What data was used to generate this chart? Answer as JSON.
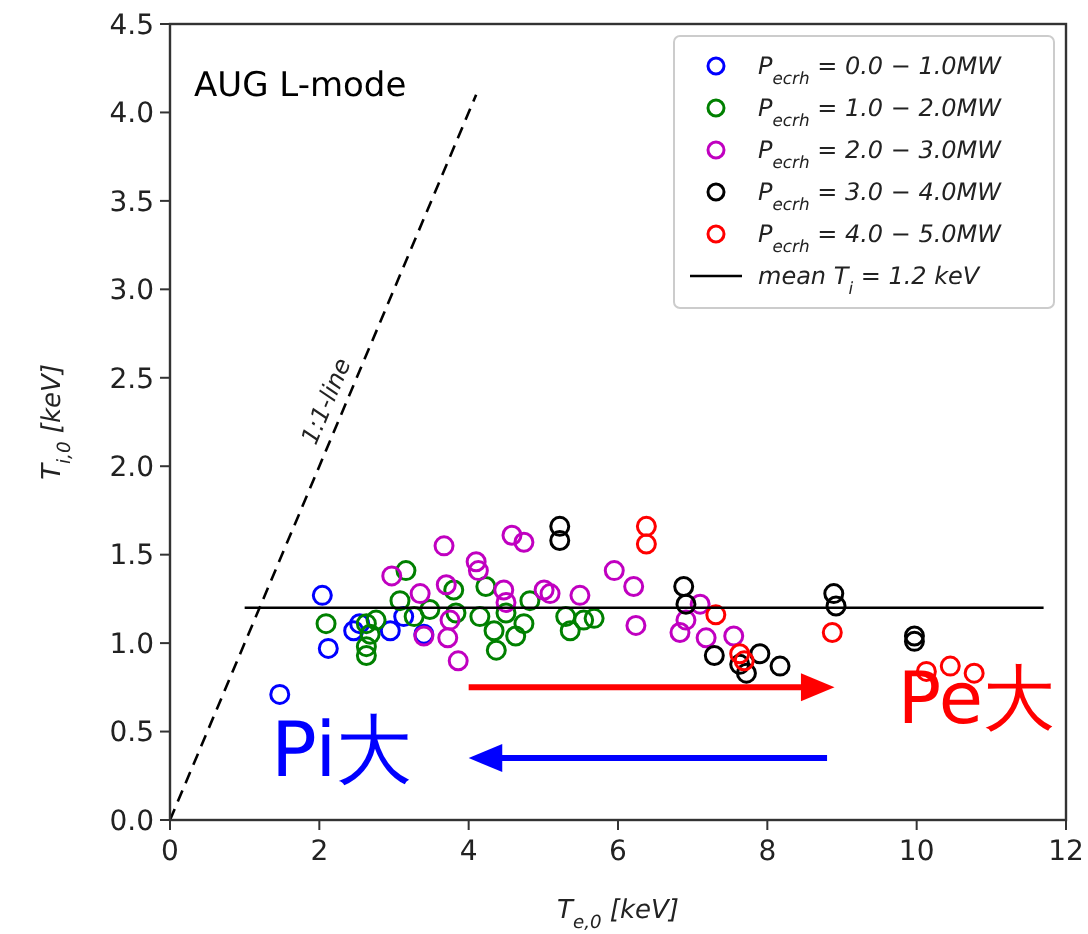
{
  "chart_data": {
    "type": "scatter",
    "xlabel": "T$_{e,0}$ [keV]",
    "ylabel": "T$_{i,0}$ [keV]",
    "xlim": [
      0,
      12
    ],
    "ylim": [
      0,
      4.5
    ],
    "xticks": [
      0,
      2,
      4,
      6,
      8,
      10,
      12
    ],
    "yticks": [
      {
        "value": 0,
        "label": "0.0"
      },
      {
        "value": 0.5,
        "label": "0.5"
      },
      {
        "value": 1,
        "label": "1.0"
      },
      {
        "value": 1.5,
        "label": "1.5"
      },
      {
        "value": 2,
        "label": "2.0"
      },
      {
        "value": 2.5,
        "label": "2.5"
      },
      {
        "value": 3,
        "label": "3.0"
      },
      {
        "value": 3.5,
        "label": "3.5"
      },
      {
        "value": 4,
        "label": "4.0"
      },
      {
        "value": 4.5,
        "label": "4.5"
      }
    ],
    "grid": false,
    "legend": "top right",
    "series": [
      {
        "name": "P$_{ecrh}$ = 0.0 − 1.0MW",
        "marker": "circle",
        "color": "#0000ff",
        "x": [
          2.04,
          2.12,
          1.47,
          2.46,
          2.95,
          3.13,
          3.4,
          2.54
        ],
        "values": [
          1.27,
          0.97,
          0.71,
          1.07,
          1.07,
          1.15,
          1.05,
          1.11
        ]
      },
      {
        "name": "P$_{ecrh}$ = 1.0 − 2.0MW",
        "marker": "circle",
        "color": "#008000",
        "x": [
          2.09,
          2.63,
          2.68,
          2.63,
          2.63,
          2.76,
          3.16,
          3.08,
          3.27,
          3.48,
          3.8,
          3.83,
          4.23,
          4.15,
          4.34,
          4.37,
          4.5,
          4.63,
          4.74,
          4.82,
          5.3,
          5.36,
          5.54,
          5.68
        ],
        "values": [
          1.11,
          1.11,
          1.05,
          0.98,
          0.93,
          1.13,
          1.41,
          1.24,
          1.15,
          1.19,
          1.3,
          1.17,
          1.32,
          1.15,
          1.07,
          0.96,
          1.17,
          1.04,
          1.11,
          1.24,
          1.15,
          1.07,
          1.13,
          1.14
        ]
      },
      {
        "name": "P$_{ecrh}$ = 2.0 − 3.0MW",
        "marker": "circle",
        "color": "#c000c0",
        "x": [
          3.67,
          2.97,
          3.35,
          3.7,
          4.1,
          4.13,
          3.75,
          3.72,
          3.86,
          3.4,
          4.47,
          4.5,
          4.74,
          5.01,
          5.09,
          5.49,
          5.95,
          6.21,
          6.24,
          6.83,
          6.91,
          7.1,
          7.18,
          7.55,
          4.58
        ],
        "values": [
          1.55,
          1.38,
          1.28,
          1.33,
          1.46,
          1.41,
          1.13,
          1.03,
          0.9,
          1.04,
          1.3,
          1.23,
          1.57,
          1.3,
          1.28,
          1.27,
          1.41,
          1.32,
          1.1,
          1.06,
          1.13,
          1.22,
          1.03,
          1.04,
          1.61
        ]
      },
      {
        "name": "P$_{ecrh}$ = 3.0 − 4.0MW",
        "marker": "circle",
        "color": "#000000",
        "x": [
          5.22,
          5.22,
          6.88,
          6.91,
          7.29,
          7.63,
          7.72,
          7.9,
          8.17,
          8.89,
          8.92,
          9.97,
          9.97
        ],
        "values": [
          1.66,
          1.58,
          1.32,
          1.22,
          0.93,
          0.88,
          0.83,
          0.94,
          0.87,
          1.28,
          1.21,
          1.04,
          1.01
        ]
      },
      {
        "name": "P$_{ecrh}$ = 4.0 − 5.0MW",
        "marker": "circle",
        "color": "#ff0000",
        "x": [
          6.38,
          6.38,
          7.31,
          8.87,
          7.63,
          7.69,
          10.13,
          10.45,
          10.77
        ],
        "values": [
          1.66,
          1.56,
          1.16,
          1.06,
          0.94,
          0.9,
          0.84,
          0.87,
          0.83
        ]
      },
      {
        "name": "mean T$_{i}$ = 1.2 keV",
        "type": "line",
        "marker": "none",
        "color": "#000000",
        "line_style": "solid",
        "x": [
          1,
          11.7
        ],
        "values": [
          1.2,
          1.2
        ]
      },
      {
        "type": "line",
        "marker": "none",
        "color": "#000000",
        "line_style": "dashed",
        "x": [
          0,
          4.1
        ],
        "values": [
          0,
          4.1
        ]
      }
    ],
    "annotations": [
      "AUG L-mode",
      {
        "text": "1:1-line",
        "x": 2.35,
        "y": 2.35
      },
      "Pe大",
      "Pi大"
    ]
  }
}
